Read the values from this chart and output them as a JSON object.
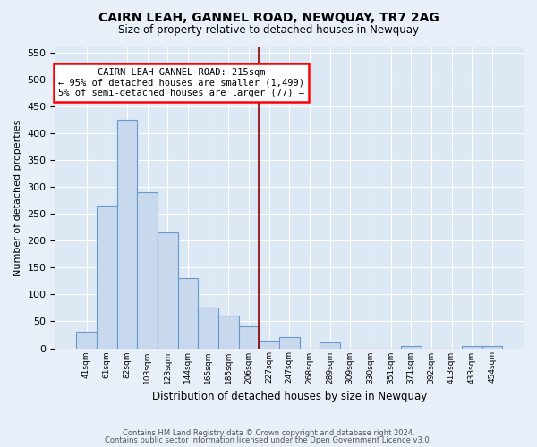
{
  "title": "CAIRN LEAH, GANNEL ROAD, NEWQUAY, TR7 2AG",
  "subtitle": "Size of property relative to detached houses in Newquay",
  "xlabel": "Distribution of detached houses by size in Newquay",
  "ylabel": "Number of detached properties",
  "bar_labels": [
    "41sqm",
    "61sqm",
    "82sqm",
    "103sqm",
    "123sqm",
    "144sqm",
    "165sqm",
    "185sqm",
    "206sqm",
    "227sqm",
    "247sqm",
    "268sqm",
    "289sqm",
    "309sqm",
    "330sqm",
    "351sqm",
    "371sqm",
    "392sqm",
    "413sqm",
    "433sqm",
    "454sqm"
  ],
  "bar_values": [
    30,
    265,
    425,
    290,
    215,
    130,
    75,
    60,
    40,
    14,
    20,
    0,
    11,
    0,
    0,
    0,
    5,
    0,
    0,
    5,
    5
  ],
  "bar_color": "#c8d9ee",
  "bar_edge_color": "#6699cc",
  "ylim": [
    0,
    560
  ],
  "yticks": [
    0,
    50,
    100,
    150,
    200,
    250,
    300,
    350,
    400,
    450,
    500,
    550
  ],
  "vline_x_index": 8.5,
  "vline_color": "#8b0000",
  "annotation_title": "CAIRN LEAH GANNEL ROAD: 215sqm",
  "annotation_line1": "← 95% of detached houses are smaller (1,499)",
  "annotation_line2": "5% of semi-detached houses are larger (77) →",
  "footer1": "Contains HM Land Registry data © Crown copyright and database right 2024.",
  "footer2": "Contains public sector information licensed under the Open Government Licence v3.0.",
  "background_color": "#e8eff8",
  "plot_bg_color": "#dce8f4",
  "grid_color": "#c0cfe0"
}
